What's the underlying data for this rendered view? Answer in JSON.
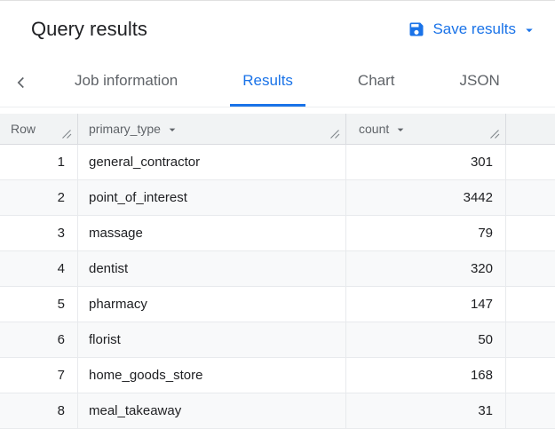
{
  "header": {
    "title": "Query results",
    "save_button_label": "Save results"
  },
  "tabs": {
    "items": [
      {
        "label": "Job information",
        "active": false
      },
      {
        "label": "Results",
        "active": true
      },
      {
        "label": "Chart",
        "active": false
      },
      {
        "label": "JSON",
        "active": false
      }
    ]
  },
  "table": {
    "columns": [
      {
        "label": "Row",
        "sortable": false
      },
      {
        "label": "primary_type",
        "sortable": true
      },
      {
        "label": "count",
        "sortable": true
      }
    ],
    "rows": [
      {
        "row": "1",
        "primary_type": "general_contractor",
        "count": "301"
      },
      {
        "row": "2",
        "primary_type": "point_of_interest",
        "count": "3442"
      },
      {
        "row": "3",
        "primary_type": "massage",
        "count": "79"
      },
      {
        "row": "4",
        "primary_type": "dentist",
        "count": "320"
      },
      {
        "row": "5",
        "primary_type": "pharmacy",
        "count": "147"
      },
      {
        "row": "6",
        "primary_type": "florist",
        "count": "50"
      },
      {
        "row": "7",
        "primary_type": "home_goods_store",
        "count": "168"
      },
      {
        "row": "8",
        "primary_type": "meal_takeaway",
        "count": "31"
      }
    ]
  },
  "colors": {
    "accent": "#1a73e8",
    "header_bg": "#f1f3f4",
    "muted_text": "#5f6368"
  }
}
